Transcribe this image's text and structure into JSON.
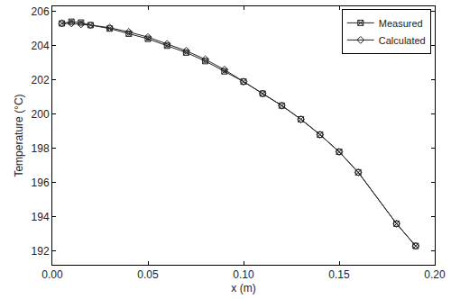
{
  "chart_data": {
    "type": "line",
    "x_label": "x (m)",
    "y_label": "Temperature (°C)",
    "series": [
      {
        "name": "Measured",
        "color": "#222222",
        "marker": "square-x-open",
        "line_style": "solid",
        "x": [
          0.005,
          0.01,
          0.015,
          0.02,
          0.03,
          0.04,
          0.05,
          0.06,
          0.07,
          0.08,
          0.09,
          0.1,
          0.11,
          0.12,
          0.13,
          0.14,
          0.15,
          0.16,
          0.18,
          0.19
        ],
        "values": [
          205.3,
          205.4,
          205.35,
          205.2,
          205.0,
          204.7,
          204.4,
          204.0,
          203.6,
          203.1,
          202.5,
          201.9,
          201.2,
          200.5,
          199.7,
          198.8,
          197.8,
          196.6,
          193.6,
          192.3
        ]
      },
      {
        "name": "Calculated",
        "color": "#222222",
        "marker": "diamond-open",
        "line_style": "solid",
        "x": [
          0.005,
          0.01,
          0.015,
          0.02,
          0.03,
          0.04,
          0.05,
          0.06,
          0.07,
          0.08,
          0.09,
          0.1,
          0.11,
          0.12,
          0.13,
          0.14,
          0.15,
          0.16,
          0.18,
          0.19
        ],
        "values": [
          205.3,
          205.3,
          205.25,
          205.2,
          205.05,
          204.8,
          204.5,
          204.1,
          203.7,
          203.2,
          202.6,
          201.9,
          201.2,
          200.5,
          199.7,
          198.8,
          197.8,
          196.6,
          193.6,
          192.3
        ]
      }
    ],
    "xlim": [
      0,
      0.2
    ],
    "xticks": [
      {
        "value": 0,
        "label": "0.00"
      },
      {
        "value": 0.05,
        "label": "0.05"
      },
      {
        "value": 0.1,
        "label": "0.10"
      },
      {
        "value": 0.15,
        "label": "0.15"
      },
      {
        "value": 0.2,
        "label": "0.20"
      }
    ],
    "ylim": [
      191.2,
      206.3
    ],
    "yticks": [
      192,
      194,
      196,
      198,
      200,
      202,
      204,
      206
    ],
    "grid": false,
    "legend": "upper right"
  }
}
